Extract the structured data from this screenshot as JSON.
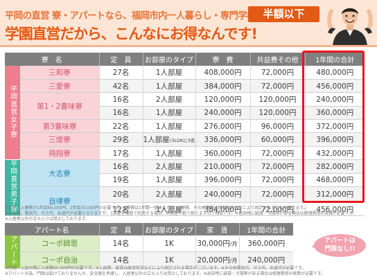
{
  "header": {
    "line1": "平岡の直営 寮・アパートなら、福岡市内一人暮らし・専門学校の",
    "line2": "学園直営だから、こんなにお得なんです!",
    "badge": "半額以下"
  },
  "dorm_table": {
    "headers": [
      "寮　名",
      "定　員",
      "お部屋のタイプ",
      "寮　費",
      "共益費その他",
      "1年間の合計"
    ],
    "female_group": "平岡直営女子寮",
    "male_group": "平岡直営男子寮",
    "rows": [
      {
        "name": "三和寮",
        "capacity": "27名",
        "type": "1人部屋",
        "fee": "408,000円",
        "common": "72,000円",
        "total": "480,000円"
      },
      {
        "name": "三愛寮",
        "capacity": "42名",
        "type": "1人部屋",
        "fee": "384,000円",
        "common": "72,000円",
        "total": "456,000円"
      },
      {
        "name": "第1・2豊味寮",
        "capacity": "16名",
        "type": "2人部屋",
        "fee": "120,000円",
        "common": "120,000円",
        "total": "240,000円"
      },
      {
        "name": "",
        "capacity": "16名",
        "type": "1人部屋",
        "fee": "240,000円",
        "common": "120,000円",
        "total": "360,000円"
      },
      {
        "name": "第3豊味寮",
        "capacity": "22名",
        "type": "1人部屋",
        "fee": "276,000円",
        "common": "96,000円",
        "total": "372,000円"
      },
      {
        "name": "三煌寮",
        "capacity": "29名",
        "type": "1人部屋",
        "type_note": "(3LDKに3名)",
        "fee": "336,000円",
        "common": "60,000円",
        "total": "396,000円"
      },
      {
        "name": "飛翔寮",
        "capacity": "17名",
        "type": "1人部屋",
        "fee": "360,000円",
        "common": "72,000円",
        "total": "432,000円"
      },
      {
        "name": "大志寮",
        "capacity": "16名",
        "type": "2人部屋",
        "fee": "210,000円",
        "common": "72,000円",
        "total": "282,000円"
      },
      {
        "name": "",
        "capacity": "19名",
        "type": "1人部屋",
        "fee": "396,000円",
        "common": "72,000円",
        "total": "468,000円"
      },
      {
        "name": "自律寮",
        "capacity": "20名",
        "type": "2人部屋",
        "fee": "240,000円",
        "common": "72,000円",
        "total": "312,000円"
      },
      {
        "name": "",
        "capacity": "12名",
        "type": "1人部屋",
        "fee": "384,000円",
        "common": "72,000円",
        "total": "456,000円"
      }
    ]
  },
  "notes_top": [
    "※別途、入寮費が1年目60,000円、2年目30,000円が必要です。※寮費は1年間一括納入です。※寮費、その他費用は経済状況などにより改訂されることがあります。",
    "※その他、電気代、ガス代、水道代が必要となりますが、1部屋を複数で利用する場合、同部屋人数で割りますので格安です。※退去時に破損・汚損等がある場合は修理費用の実費が必要です。",
    "※入居者以外の立ち入りは禁止しております。"
  ],
  "apartment_table": {
    "group": "アパート",
    "headers": [
      "アパート名",
      "定　員",
      "お部屋のタイプ",
      "家　賃",
      "1年間の合計"
    ],
    "rows": [
      {
        "name": "コーポ師恩",
        "capacity": "14名",
        "type": "1K",
        "rent": "30,000円",
        "rent_unit": "/月",
        "total": "360,000円"
      },
      {
        "name": "コーポ自治",
        "capacity": "14名",
        "type": "1K",
        "rent": "20,000円",
        "rent_unit": "/月",
        "total": "240,000円"
      }
    ]
  },
  "notes_bottom": [
    "※別途、入居の際に入居費60,000円が必要です。※入居費、家賃は経済状況などにより改訂される場合がございます。※その他電気代、ガス代、水道代が必要です。",
    "※アパートの為、門限は設けておりませんが、安全面を考慮し、入居者以外の立ち入りは禁止しております。※退去時に破損・汚損等がある場合は修理費用の実費が必要です。"
  ],
  "bubble": {
    "line1": "アパートは",
    "line2": "門限なし!!"
  },
  "colors": {
    "accent": "#e35a14",
    "female": "#ee7d8e",
    "male": "#3cb6a0",
    "apartment": "#8cc63f",
    "highlight": "#e8161a"
  }
}
